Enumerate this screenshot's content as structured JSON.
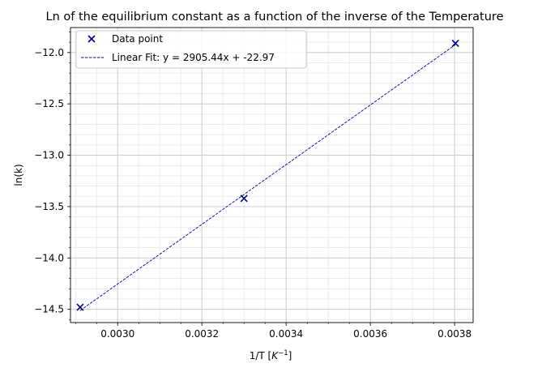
{
  "chart_data": {
    "type": "scatter",
    "title": "Ln of the equilibrium constant as a function of the inverse of the Temperature",
    "xlabel_main": "1/T [",
    "xlabel_unit": "K",
    "xlabel_exp": "−1",
    "xlabel_close": "]",
    "ylabel": "ln(k)",
    "xlim": [
      0.002888,
      0.003844
    ],
    "ylim": [
      -14.629,
      -11.757
    ],
    "x_ticks": [
      0.003,
      0.0032,
      0.0034,
      0.0036,
      0.0038
    ],
    "x_tick_labels": [
      "0.0030",
      "0.0032",
      "0.0034",
      "0.0036",
      "0.0038"
    ],
    "y_ticks": [
      -12.0,
      -12.5,
      -13.0,
      -13.5,
      -14.0,
      -14.5
    ],
    "y_tick_labels": [
      "−12.0",
      "−12.5",
      "−13.0",
      "−13.5",
      "−14.0",
      "−14.5"
    ],
    "x_minor_step": 5e-05,
    "y_minor_step": 0.1,
    "grid": true,
    "legend_position": "top-left",
    "series": [
      {
        "name": "Data point",
        "kind": "scatter",
        "marker": "x",
        "color": "#00008b",
        "x": [
          0.002911,
          0.0033,
          0.003802
        ],
        "y": [
          -14.48,
          -13.42,
          -11.91
        ]
      },
      {
        "name": "Linear Fit: y = 2905.44x + -22.97",
        "kind": "line",
        "style": "dashed",
        "color": "#00008b",
        "slope": 2905.44,
        "intercept": -22.97,
        "x_range": [
          0.002911,
          0.003802
        ]
      }
    ]
  }
}
